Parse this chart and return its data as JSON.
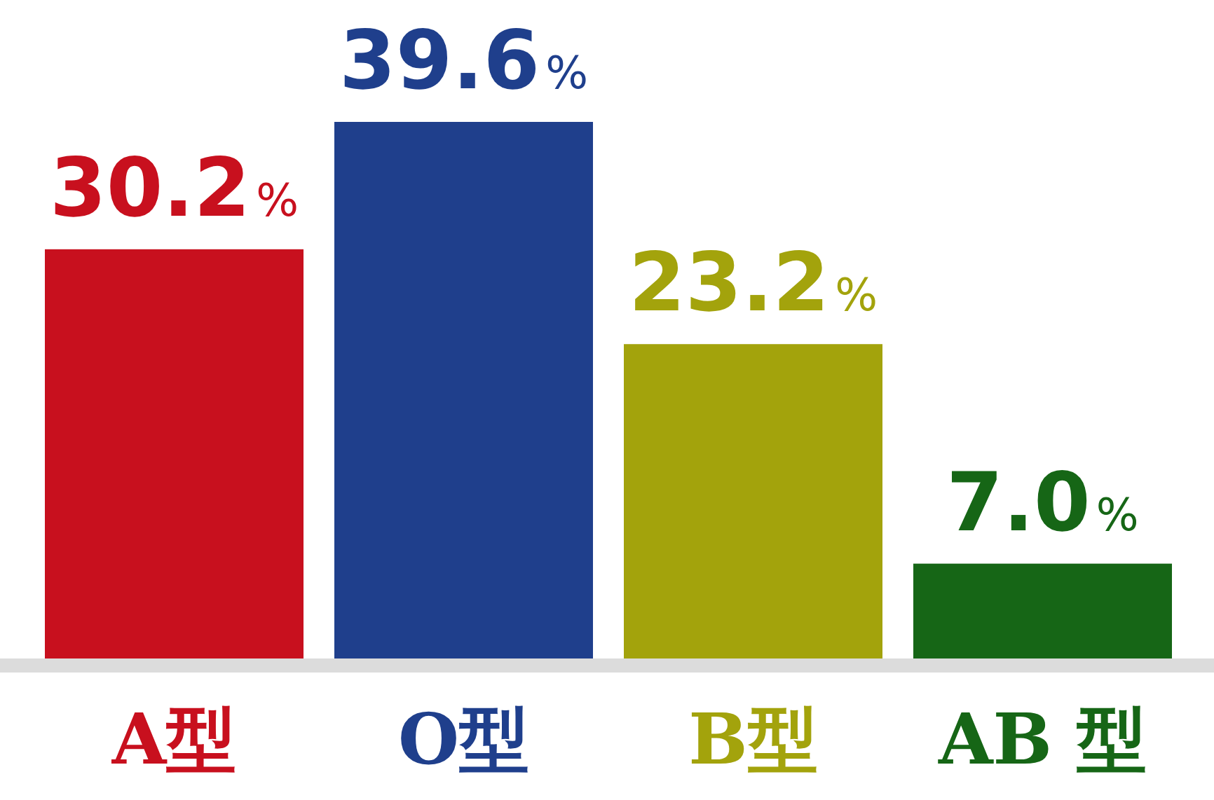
{
  "chart_data": {
    "type": "bar",
    "categories": [
      "A型",
      "O型",
      "B型",
      "AB 型"
    ],
    "values": [
      30.2,
      39.6,
      23.2,
      7.0
    ],
    "colors": [
      "#c8101e",
      "#1f3f8c",
      "#a3a30c",
      "#166616"
    ],
    "value_labels": [
      "30.2%",
      "39.6%",
      "23.2%",
      "7.0%"
    ]
  }
}
